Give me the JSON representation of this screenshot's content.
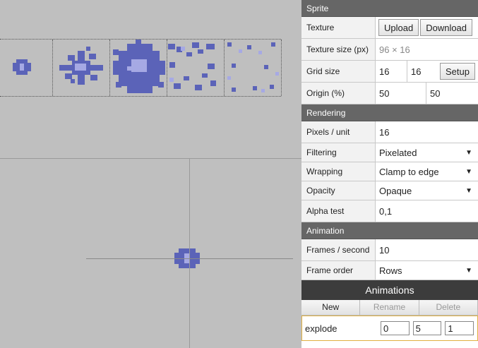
{
  "sections": {
    "sprite": "Sprite",
    "rendering": "Rendering",
    "animation": "Animation"
  },
  "sprite": {
    "texture_label": "Texture",
    "upload_label": "Upload",
    "download_label": "Download",
    "texture_size_label": "Texture size (px)",
    "texture_size_value": "96 × 16",
    "grid_size_label": "Grid size",
    "grid_w": "16",
    "grid_h": "16",
    "setup_label": "Setup",
    "origin_label": "Origin (%)",
    "origin_x": "50",
    "origin_y": "50"
  },
  "rendering": {
    "pixels_unit_label": "Pixels / unit",
    "pixels_unit_value": "16",
    "filtering_label": "Filtering",
    "filtering_value": "Pixelated",
    "wrapping_label": "Wrapping",
    "wrapping_value": "Clamp to edge",
    "opacity_label": "Opacity",
    "opacity_value": "Opaque",
    "alpha_test_label": "Alpha test",
    "alpha_test_value": "0,1"
  },
  "animation": {
    "fps_label": "Frames / second",
    "fps_value": "10",
    "frame_order_label": "Frame order",
    "frame_order_value": "Rows"
  },
  "animations": {
    "title": "Animations",
    "new_label": "New",
    "rename_label": "Rename",
    "delete_label": "Delete",
    "items": [
      {
        "name": "explode",
        "start": "0",
        "end": "5",
        "speed": "1"
      }
    ]
  },
  "icons": {
    "dropdown": "▼"
  },
  "colors": {
    "sprite_dark": "#5b63b8",
    "sprite_light": "#a6a9e4",
    "header": "#666666",
    "panel_header": "#3c3c3c"
  }
}
